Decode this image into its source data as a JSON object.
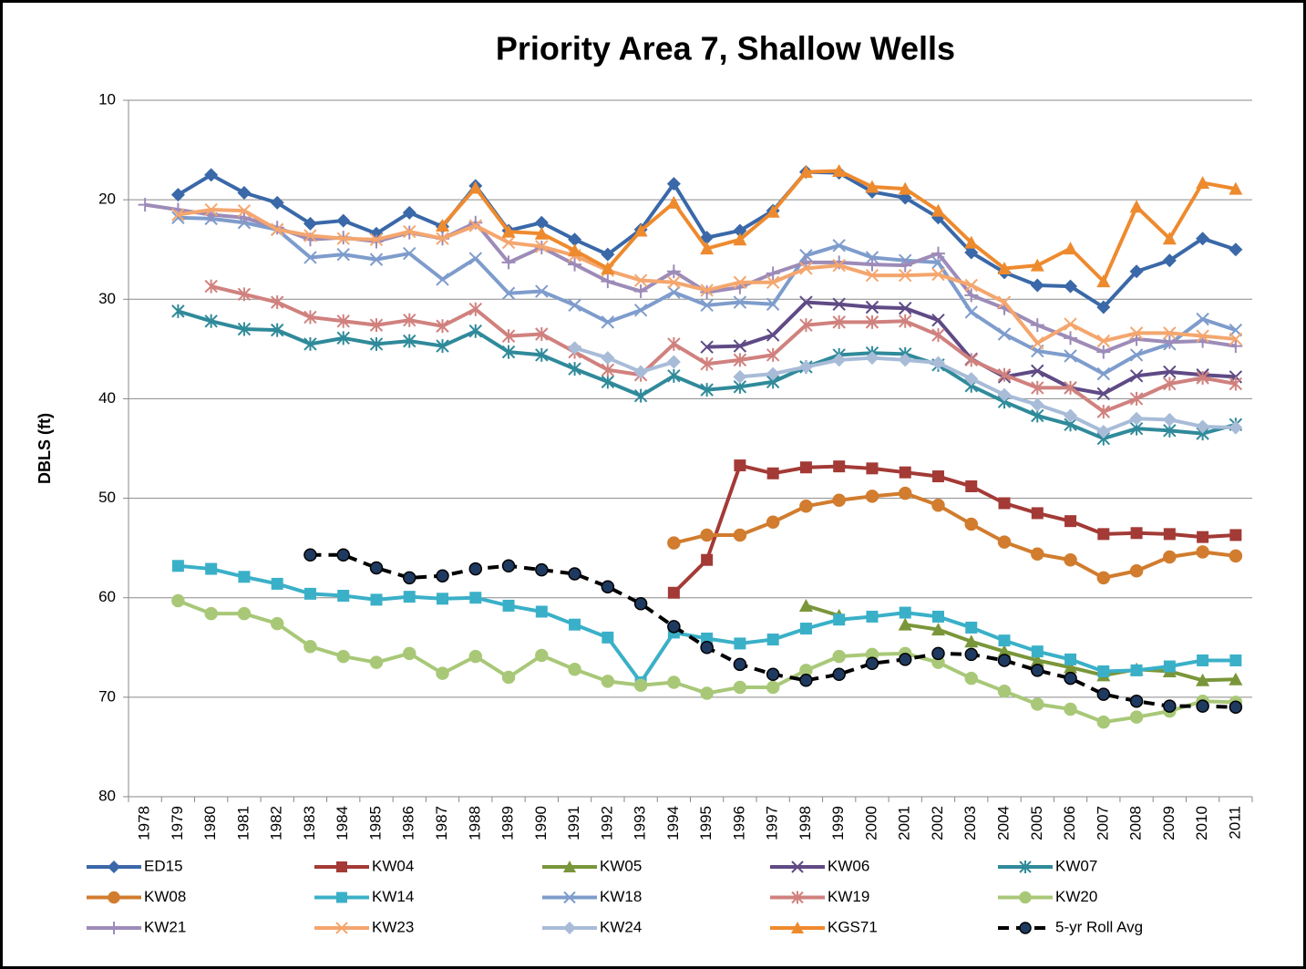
{
  "chart_data": {
    "type": "line",
    "title": "Priority Area 7, Shallow Wells",
    "y_label": "DBLS (ft)",
    "ylim": [
      10,
      80
    ],
    "y_inverted": true,
    "yticks": [
      10,
      20,
      30,
      40,
      50,
      60,
      70,
      80
    ],
    "grid": true,
    "legend": "bottom",
    "categories": [
      "1978",
      "1979",
      "1980",
      "1981",
      "1982",
      "1983",
      "1984",
      "1985",
      "1986",
      "1987",
      "1988",
      "1989",
      "1990",
      "1991",
      "1992",
      "1993",
      "1994",
      "1995",
      "1996",
      "1997",
      "1998",
      "1999",
      "2000",
      "2001",
      "2002",
      "2003",
      "2004",
      "2005",
      "2006",
      "2007",
      "2008",
      "2009",
      "2010",
      "2011"
    ],
    "series": [
      {
        "name": "ED15",
        "color": "#3a68a8",
        "marker": "diamond",
        "values": [
          null,
          19.5,
          17.5,
          19.3,
          20.3,
          22.4,
          22.1,
          23.4,
          21.3,
          22.7,
          18.6,
          23.1,
          22.3,
          24.0,
          25.5,
          23.0,
          18.4,
          23.8,
          23.1,
          21.1,
          17.2,
          17.3,
          19.2,
          19.8,
          21.8,
          25.3,
          27.3,
          28.6,
          28.7,
          30.8,
          27.2,
          26.1,
          23.9,
          25.0
        ]
      },
      {
        "name": "KW04",
        "color": "#a33a36",
        "marker": "square",
        "values": [
          null,
          null,
          null,
          null,
          null,
          null,
          null,
          null,
          null,
          null,
          null,
          null,
          null,
          null,
          null,
          null,
          59.5,
          56.2,
          46.7,
          47.5,
          46.9,
          46.8,
          47.0,
          47.4,
          47.8,
          48.8,
          50.5,
          51.5,
          52.3,
          53.6,
          53.5,
          53.6,
          53.9,
          53.7
        ]
      },
      {
        "name": "KW05",
        "color": "#7a963a",
        "marker": "triangle",
        "values": [
          null,
          null,
          null,
          null,
          null,
          null,
          null,
          null,
          null,
          null,
          null,
          null,
          null,
          null,
          null,
          null,
          null,
          null,
          null,
          null,
          60.8,
          61.8,
          null,
          62.7,
          63.2,
          64.4,
          65.4,
          66.3,
          67.0,
          67.8,
          67.2,
          67.4,
          68.3,
          68.2
        ]
      },
      {
        "name": "KW06",
        "color": "#5f4a85",
        "marker": "x",
        "values": [
          null,
          null,
          null,
          null,
          null,
          null,
          null,
          null,
          null,
          null,
          null,
          null,
          null,
          null,
          null,
          null,
          null,
          34.8,
          34.7,
          33.6,
          30.3,
          30.5,
          30.8,
          30.9,
          32.1,
          36.0,
          37.8,
          37.2,
          38.9,
          39.5,
          37.7,
          37.3,
          37.6,
          37.8
        ]
      },
      {
        "name": "KW07",
        "color": "#2f8a9a",
        "marker": "star",
        "values": [
          null,
          31.2,
          32.2,
          33.0,
          33.1,
          34.5,
          33.9,
          34.5,
          34.2,
          34.7,
          33.2,
          35.3,
          35.6,
          37.0,
          38.3,
          39.7,
          37.7,
          39.1,
          38.8,
          38.3,
          36.8,
          35.6,
          35.4,
          35.5,
          36.6,
          38.7,
          40.3,
          41.7,
          42.6,
          44.0,
          43.0,
          43.2,
          43.5,
          42.6
        ]
      },
      {
        "name": "KW08",
        "color": "#d17c2e",
        "marker": "circle",
        "values": [
          null,
          null,
          null,
          null,
          null,
          null,
          null,
          null,
          null,
          null,
          null,
          null,
          null,
          null,
          null,
          null,
          54.5,
          53.7,
          53.7,
          52.4,
          50.8,
          50.2,
          49.8,
          49.5,
          50.7,
          52.6,
          54.4,
          55.6,
          56.2,
          58.0,
          57.3,
          55.9,
          55.4,
          55.8
        ]
      },
      {
        "name": "KW14",
        "color": "#3ab0c8",
        "marker": "square",
        "values": [
          null,
          56.8,
          57.1,
          57.9,
          58.6,
          59.6,
          59.8,
          60.2,
          59.9,
          60.1,
          60.0,
          60.8,
          61.4,
          62.7,
          64.0,
          68.5,
          63.5,
          64.1,
          64.6,
          64.2,
          63.1,
          62.2,
          61.9,
          61.5,
          61.9,
          63.0,
          64.3,
          65.4,
          66.2,
          67.4,
          67.3,
          66.9,
          66.3,
          66.3
        ]
      },
      {
        "name": "KW18",
        "color": "#7e9ccc",
        "marker": "x",
        "values": [
          null,
          21.8,
          21.9,
          22.3,
          23.0,
          25.8,
          25.5,
          26.0,
          25.4,
          28.0,
          25.9,
          29.4,
          29.2,
          30.6,
          32.3,
          31.1,
          29.3,
          30.6,
          30.3,
          30.5,
          25.6,
          24.6,
          25.8,
          26.1,
          26.3,
          31.3,
          33.5,
          35.2,
          35.7,
          37.5,
          35.6,
          34.5,
          32.0,
          33.1
        ]
      },
      {
        "name": "KW19",
        "color": "#d0817e",
        "marker": "star",
        "values": [
          null,
          null,
          28.7,
          29.5,
          30.3,
          31.8,
          32.2,
          32.6,
          32.1,
          32.7,
          31.0,
          33.7,
          33.5,
          35.3,
          37.1,
          37.6,
          34.5,
          36.5,
          36.1,
          35.6,
          32.6,
          32.3,
          32.3,
          32.2,
          33.6,
          36.1,
          37.6,
          38.9,
          38.9,
          41.3,
          40.0,
          38.5,
          37.9,
          38.5
        ]
      },
      {
        "name": "KW20",
        "color": "#a8c878",
        "marker": "circle",
        "values": [
          null,
          60.3,
          61.6,
          61.6,
          62.6,
          64.9,
          65.9,
          66.5,
          65.6,
          67.6,
          65.9,
          68.0,
          65.8,
          67.2,
          68.4,
          68.8,
          68.5,
          69.6,
          69.0,
          69.0,
          67.3,
          65.9,
          65.7,
          65.6,
          66.5,
          68.1,
          69.4,
          70.7,
          71.2,
          72.5,
          72.0,
          71.4,
          70.4,
          70.5
        ]
      },
      {
        "name": "KW21",
        "color": "#9d8bb8",
        "marker": "plus",
        "values": [
          20.5,
          21.0,
          21.5,
          21.8,
          22.8,
          24.0,
          23.8,
          24.2,
          23.3,
          23.9,
          22.3,
          26.3,
          24.8,
          26.5,
          28.2,
          29.2,
          27.2,
          29.3,
          28.8,
          27.4,
          26.3,
          26.3,
          26.5,
          26.6,
          25.4,
          29.6,
          30.9,
          32.6,
          33.9,
          35.3,
          34.0,
          34.3,
          34.2,
          34.7
        ]
      },
      {
        "name": "KW23",
        "color": "#f4a66e",
        "marker": "x",
        "values": [
          null,
          21.5,
          21.0,
          21.1,
          23.0,
          23.6,
          23.9,
          24.0,
          23.2,
          23.9,
          22.6,
          24.3,
          24.7,
          25.6,
          27.1,
          28.1,
          28.3,
          29.1,
          28.3,
          28.3,
          26.9,
          26.6,
          27.6,
          27.6,
          27.5,
          28.6,
          30.3,
          34.4,
          32.5,
          34.2,
          33.4,
          33.4,
          33.7,
          34.0
        ]
      },
      {
        "name": "KW24",
        "color": "#a8bcd8",
        "marker": "diamond",
        "values": [
          null,
          null,
          null,
          null,
          null,
          null,
          null,
          null,
          null,
          null,
          null,
          null,
          null,
          34.9,
          35.9,
          37.3,
          36.3,
          null,
          37.8,
          37.5,
          36.8,
          36.1,
          35.9,
          36.1,
          36.4,
          38.0,
          39.6,
          40.6,
          41.7,
          43.3,
          42.0,
          42.1,
          42.8,
          42.9
        ]
      },
      {
        "name": "KGS71",
        "color": "#ee8a2e",
        "marker": "triangle",
        "values": [
          null,
          null,
          null,
          null,
          null,
          null,
          null,
          null,
          null,
          22.6,
          18.8,
          23.2,
          23.4,
          25.1,
          26.9,
          23.1,
          20.3,
          24.9,
          24.0,
          21.2,
          17.2,
          17.1,
          18.7,
          18.9,
          21.1,
          24.3,
          26.9,
          26.6,
          24.9,
          28.2,
          20.7,
          23.9,
          18.3,
          18.9
        ]
      },
      {
        "name": "5-yr Roll Avg",
        "color": "#000000",
        "marker_fill": "#1f3a60",
        "marker": "circle",
        "dashed": true,
        "values": [
          null,
          null,
          null,
          null,
          null,
          55.7,
          55.7,
          57.0,
          58.0,
          57.8,
          57.1,
          56.8,
          57.2,
          57.6,
          58.9,
          60.6,
          62.9,
          65.0,
          66.7,
          67.7,
          68.3,
          67.7,
          66.6,
          66.2,
          65.6,
          65.7,
          66.3,
          67.3,
          68.1,
          69.7,
          70.4,
          70.9,
          70.9,
          71.0
        ]
      }
    ]
  }
}
